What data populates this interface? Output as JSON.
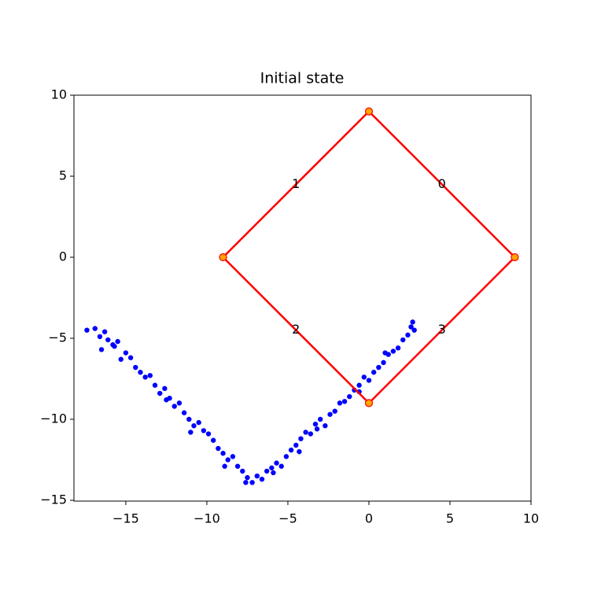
{
  "chart_data": {
    "type": "scatter",
    "title": "Initial state",
    "series": [
      {
        "color": "blue",
        "x": [
          -17.4,
          -16.9,
          -16.6,
          -16.3,
          -16.1,
          -15.8,
          -15.5,
          -15.3,
          -15.0,
          -14.7,
          -14.4,
          -14.1,
          -13.8,
          -13.5,
          -13.2,
          -12.9,
          -12.6,
          -12.3,
          -12.0,
          -11.7,
          -11.4,
          -11.1,
          -10.8,
          -10.5,
          -10.2,
          -9.9,
          -9.6,
          -9.3,
          -9.0,
          -8.7,
          -8.4,
          -8.1,
          -7.8,
          -7.5,
          -7.2,
          -6.9,
          -6.6,
          -6.3,
          -6.0,
          -5.7,
          -5.4,
          -5.1,
          -4.8,
          -4.5,
          -4.2,
          -3.9,
          -3.6,
          -3.3,
          -3.0,
          -2.7,
          -2.4,
          -2.1,
          -1.8,
          -1.5,
          -1.2,
          -0.9,
          -0.6,
          -0.3,
          0.0,
          0.3,
          0.6,
          0.9,
          1.2,
          1.5,
          1.8,
          2.1,
          2.4,
          2.6,
          2.8,
          2.7,
          -16.5,
          -15.7,
          -12.5,
          -11.0,
          -8.9,
          -7.6,
          -5.9,
          -4.3,
          -3.2,
          -0.6,
          1.0
        ],
        "values": [
          -4.5,
          -4.4,
          -4.9,
          -4.6,
          -5.1,
          -5.4,
          -5.2,
          -6.3,
          -5.9,
          -6.2,
          -6.8,
          -7.1,
          -7.4,
          -7.3,
          -7.9,
          -8.4,
          -8.1,
          -8.7,
          -9.2,
          -9.0,
          -9.6,
          -10.0,
          -10.4,
          -10.2,
          -10.7,
          -10.9,
          -11.3,
          -11.8,
          -12.1,
          -12.5,
          -12.3,
          -12.9,
          -13.2,
          -13.6,
          -13.9,
          -13.5,
          -13.7,
          -13.2,
          -13.0,
          -12.7,
          -12.9,
          -12.3,
          -11.9,
          -11.6,
          -11.2,
          -10.8,
          -10.9,
          -10.3,
          -10.0,
          -10.4,
          -9.7,
          -9.5,
          -9.0,
          -8.9,
          -8.6,
          -8.2,
          -7.9,
          -7.4,
          -7.6,
          -7.1,
          -6.8,
          -6.5,
          -6.0,
          -5.8,
          -5.6,
          -5.1,
          -4.8,
          -4.3,
          -4.5,
          -4.0,
          -5.7,
          -5.5,
          -8.8,
          -10.8,
          -12.9,
          -13.9,
          -13.3,
          -12.0,
          -10.6,
          -8.3,
          -5.9
        ]
      }
    ],
    "polygon": {
      "x": [
        9,
        0,
        -9,
        0
      ],
      "y": [
        0,
        9,
        0,
        -9
      ],
      "edge_labels": [
        "0",
        "1",
        "2",
        "3"
      ],
      "color": "red",
      "vertex_color": "orange"
    },
    "xlim": [
      -18.2,
      10
    ],
    "ylim": [
      -15.05,
      10
    ],
    "xticks": [
      {
        "value": -15,
        "label": "−15"
      },
      {
        "value": -10,
        "label": "−10"
      },
      {
        "value": -5,
        "label": "−5"
      },
      0,
      5,
      10
    ],
    "yticks": [
      {
        "value": -15,
        "label": "−15"
      },
      {
        "value": -10,
        "label": "−10"
      },
      {
        "value": -5,
        "label": "−5"
      },
      0,
      5,
      10
    ]
  }
}
